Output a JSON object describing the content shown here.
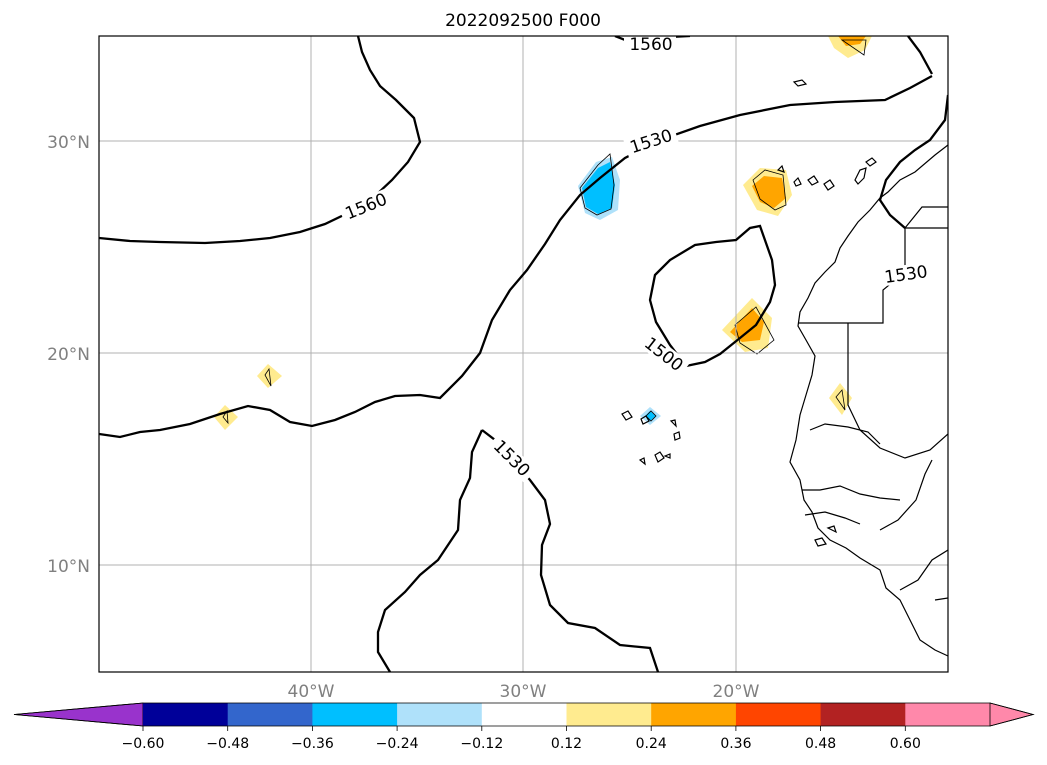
{
  "title": "2022092500 F000",
  "map": {
    "lat_labels": [
      "30°N",
      "20°N",
      "10°N"
    ],
    "lon_labels": [
      "40°W",
      "30°W",
      "20°W"
    ],
    "contour_labels": [
      "1560",
      "1530",
      "1560",
      "1530",
      "1500",
      "1530"
    ]
  },
  "colorbar": {
    "tick_labels": [
      "−0.60",
      "−0.48",
      "−0.36",
      "−0.24",
      "−0.12",
      "0.12",
      "0.24",
      "0.36",
      "0.48",
      "0.60"
    ],
    "colors": [
      "#9933cc",
      "#000099",
      "#3366cc",
      "#00bfff",
      "#afe1fa",
      "#ffffff",
      "#ffeb8f",
      "#ffa500",
      "#ff4500",
      "#b22222",
      "#ff88aa",
      "#ff88aa"
    ]
  }
}
